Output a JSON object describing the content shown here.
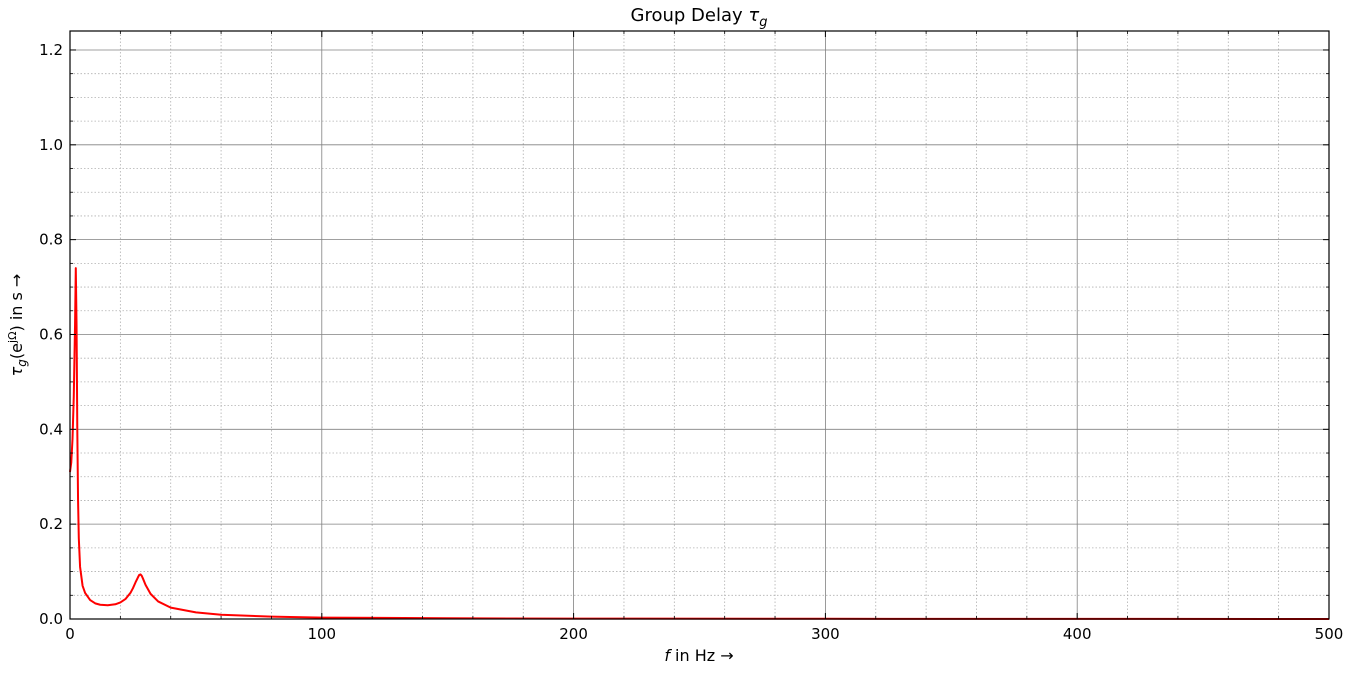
{
  "chart_data": {
    "type": "line",
    "title_main": "Group Delay ",
    "title_symbol": "τ",
    "title_sub": "g",
    "xlabel_var": "f",
    "xlabel_rest": " in Hz →",
    "ylabel_sym": "τ",
    "ylabel_sub": "g",
    "ylabel_mid": "(e",
    "ylabel_sup": "jΩ",
    "ylabel_rest": ") in s →",
    "xlim": [
      0,
      500
    ],
    "ylim": [
      0,
      1.24
    ],
    "xticks": [
      0,
      100,
      200,
      300,
      400,
      500
    ],
    "xtick_labels": [
      "0",
      "100",
      "200",
      "300",
      "400",
      "500"
    ],
    "yticks": [
      0.0,
      0.2,
      0.4,
      0.6,
      0.8,
      1.0,
      1.2
    ],
    "ytick_labels": [
      "0.0",
      "0.2",
      "0.4",
      "0.6",
      "0.8",
      "1.0",
      "1.2"
    ],
    "grid_major": true,
    "grid_minor": true,
    "series": [
      {
        "color": "#ff0000",
        "x": [
          0,
          0.5,
          1,
          1.5,
          2,
          2.3,
          2.6,
          2.9,
          3.2,
          3.5,
          4,
          5,
          6,
          8,
          10,
          12,
          15,
          18,
          20,
          22,
          24,
          25,
          26,
          27,
          27.5,
          28,
          28.5,
          29,
          30,
          32,
          35,
          40,
          50,
          60,
          80,
          100,
          150,
          200,
          300,
          400,
          500
        ],
        "y": [
          0.31,
          0.33,
          0.38,
          0.47,
          0.62,
          0.74,
          0.62,
          0.4,
          0.25,
          0.17,
          0.11,
          0.07,
          0.055,
          0.04,
          0.033,
          0.03,
          0.029,
          0.031,
          0.035,
          0.042,
          0.055,
          0.065,
          0.077,
          0.088,
          0.093,
          0.094,
          0.091,
          0.085,
          0.072,
          0.053,
          0.037,
          0.024,
          0.014,
          0.009,
          0.005,
          0.003,
          0.0015,
          0.0008,
          0.0004,
          0.0002,
          0.0001
        ]
      }
    ]
  }
}
